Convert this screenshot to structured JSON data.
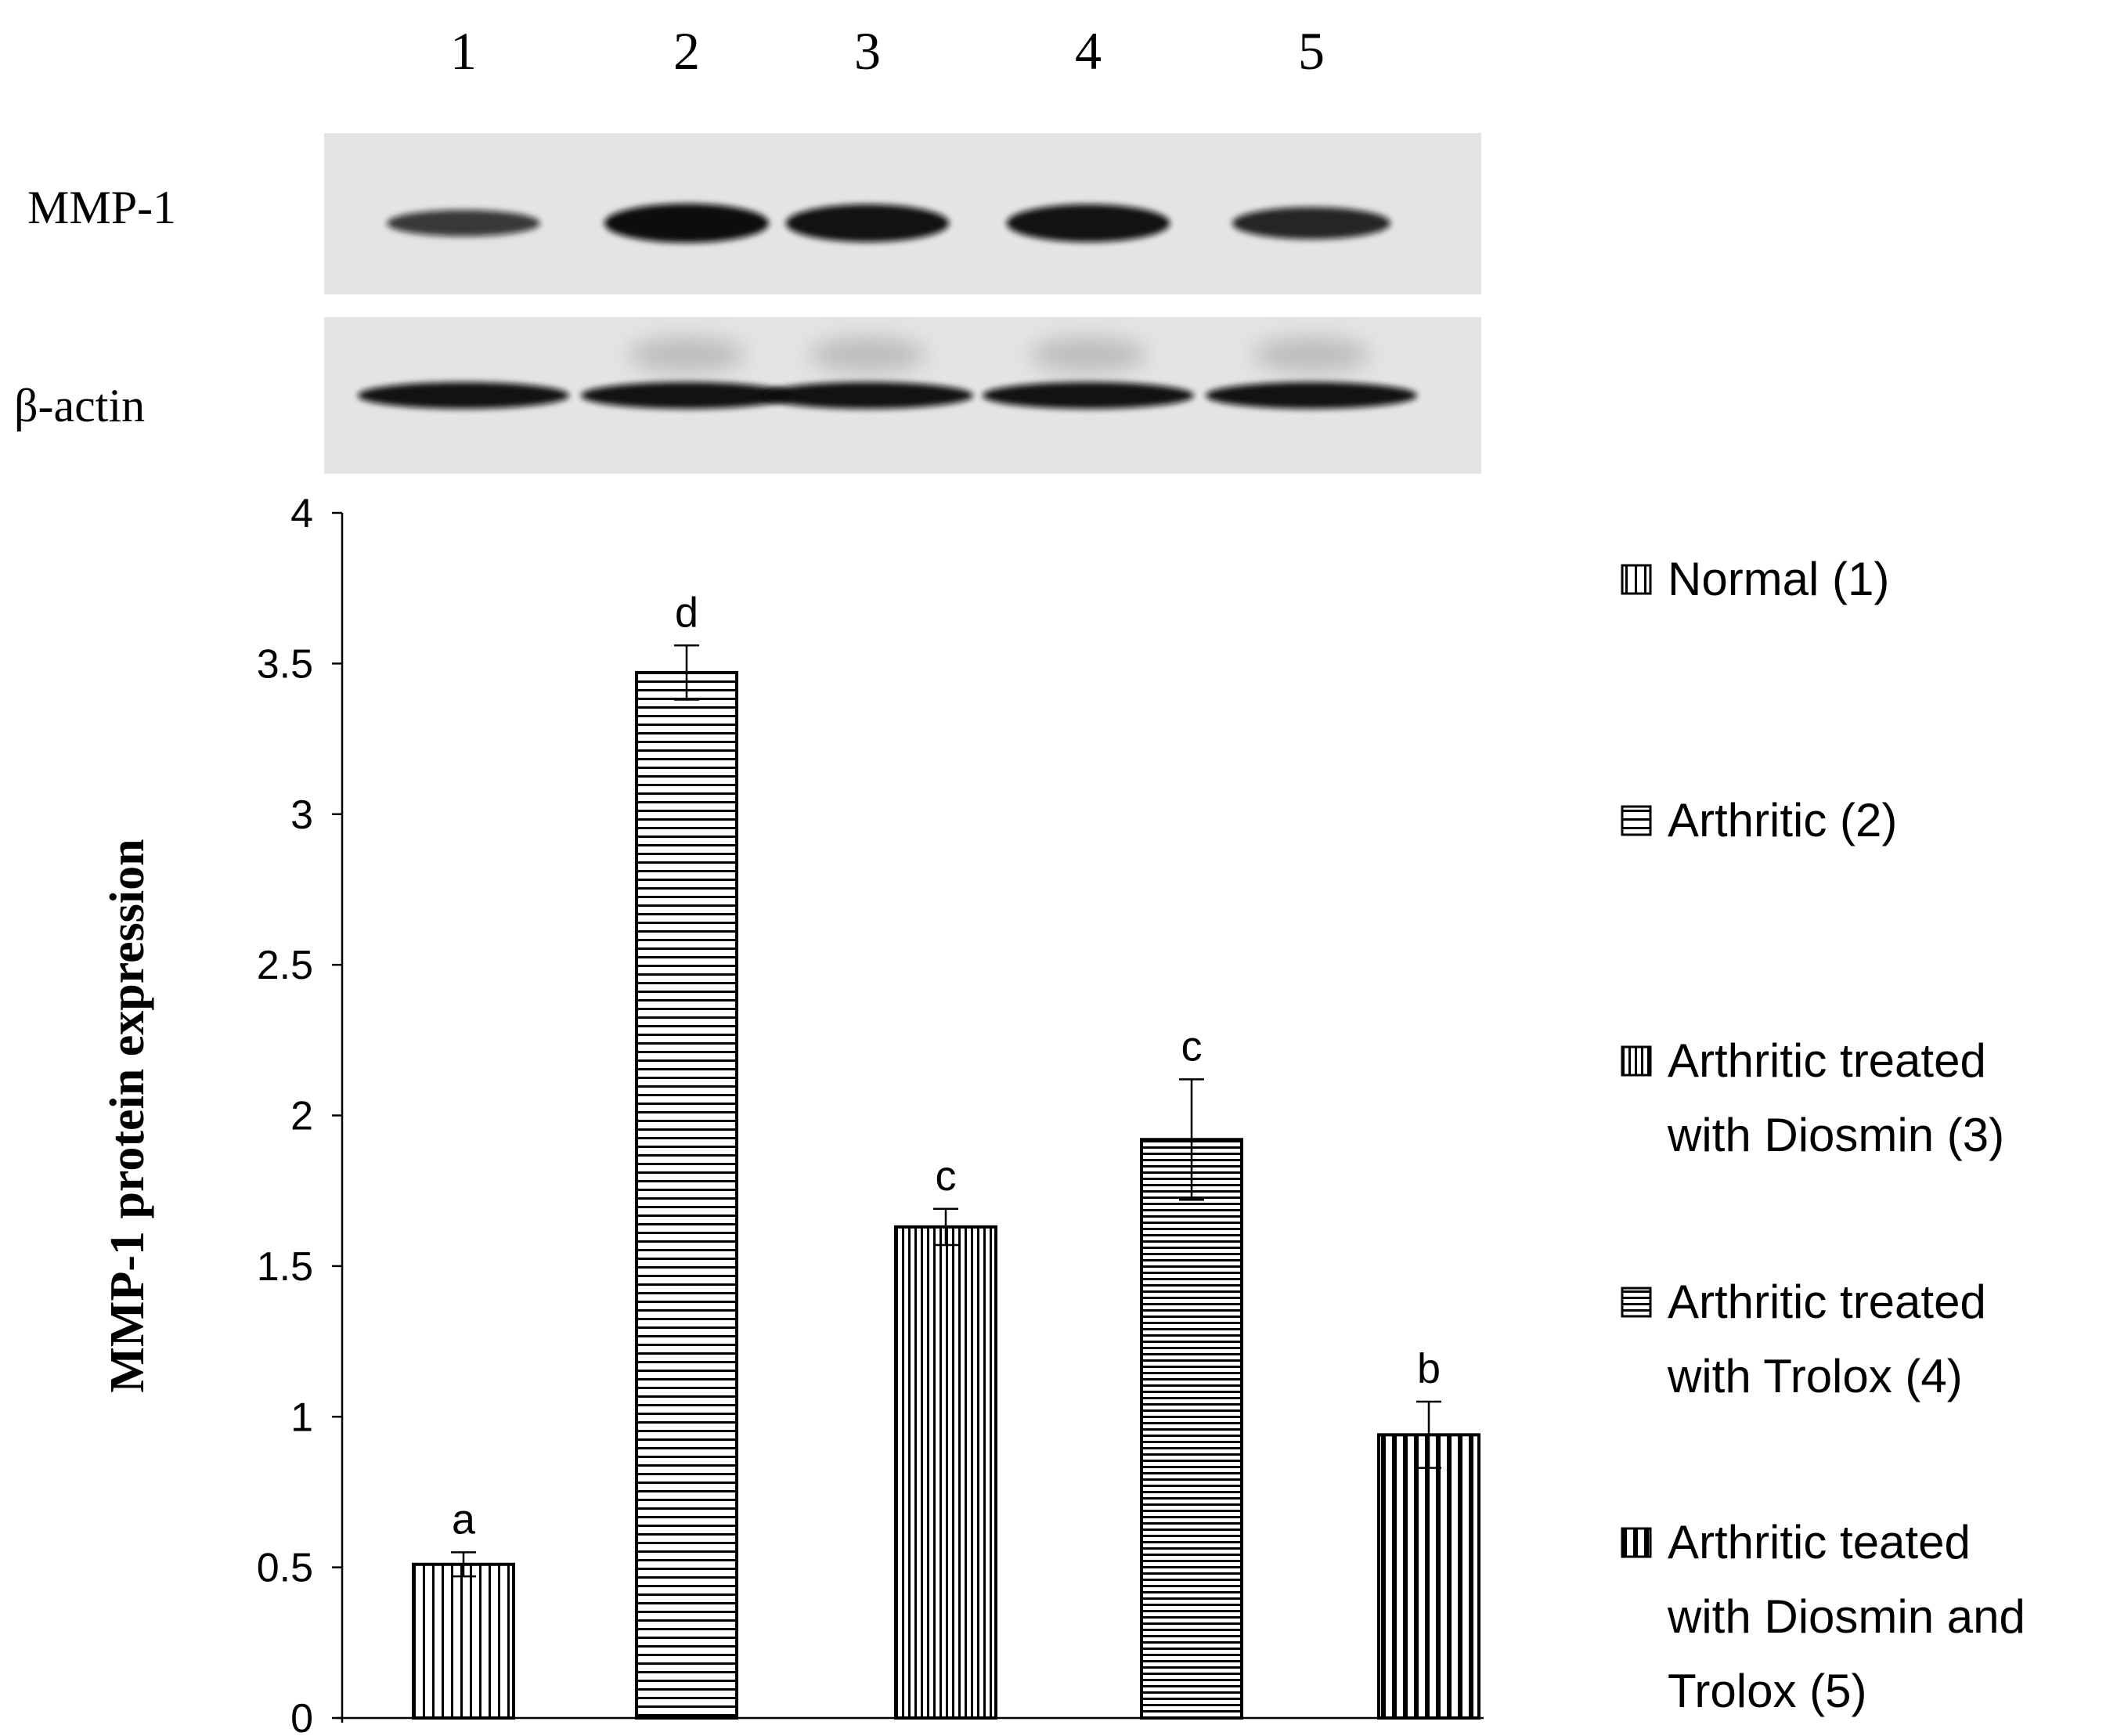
{
  "blot": {
    "lanes": [
      "1",
      "2",
      "3",
      "4",
      "5"
    ],
    "rows": [
      {
        "label": "MMP-1",
        "intensity": [
          0.55,
          1.0,
          0.95,
          0.95,
          0.75
        ]
      },
      {
        "label": "β-actin",
        "intensity": [
          0.95,
          0.95,
          0.95,
          0.95,
          0.95
        ]
      }
    ]
  },
  "chart_data": {
    "type": "bar",
    "ylabel": "MMP-1 protein expression",
    "xlabel": "",
    "ylim": [
      0,
      4
    ],
    "yticks": [
      "0",
      "0.5",
      "1",
      "1.5",
      "2",
      "2.5",
      "3",
      "3.5",
      "4"
    ],
    "grid": false,
    "legend_position": "right",
    "categories": [
      "Normal (1)",
      "Arthritic (2)",
      "Arthritic treated with Diosmin (3)",
      "Arthritic treated with Trolox (4)",
      "Arthritic teated with Diosmin and Trolox (5)"
    ],
    "legend_lines": [
      [
        "Normal (1)"
      ],
      [
        "Arthritic (2)"
      ],
      [
        "Arthritic treated",
        "with Diosmin (3)"
      ],
      [
        "Arthritic treated",
        "with Trolox (4)"
      ],
      [
        "Arthritic teated",
        "with Diosmin and",
        "Trolox (5)"
      ]
    ],
    "values": [
      0.51,
      3.47,
      1.63,
      1.92,
      0.94
    ],
    "errors": [
      0.04,
      0.09,
      0.06,
      0.2,
      0.11
    ],
    "significance_letters": [
      "a",
      "d",
      "c",
      "c",
      "b"
    ],
    "patterns": [
      "vthin",
      "hthin",
      "vdense",
      "hdense",
      "vthick"
    ]
  }
}
